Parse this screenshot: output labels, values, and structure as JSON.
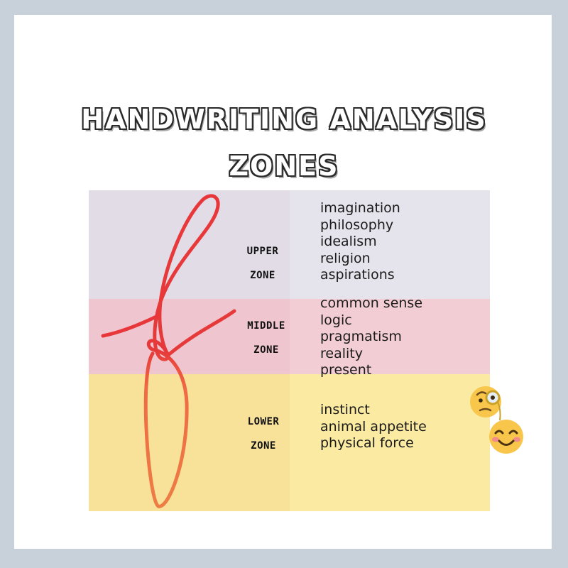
{
  "title": {
    "line1": "HANDWRITING ANALYSIS",
    "line2": "ZONES"
  },
  "zones": [
    {
      "id": "upper",
      "label_line1": "UPPER",
      "label_line2": "ZONE",
      "color": "#e5e4ec",
      "traits": [
        "imagination",
        "philosophy",
        "idealism",
        "religion",
        "aspirations"
      ]
    },
    {
      "id": "middle",
      "label_line1": "MIDDLE",
      "label_line2": "ZONE",
      "color": "#f2cdd3",
      "traits": [
        "common sense",
        "logic",
        "pragmatism",
        "reality",
        "present"
      ]
    },
    {
      "id": "lower",
      "label_line1": "LOWER",
      "label_line2": "ZONE",
      "color": "#fbeaa2",
      "traits": [
        "instinct",
        "animal appetite",
        "physical force"
      ]
    }
  ],
  "colors": {
    "ink": "#e8373a",
    "ink_lower": "#ee7d45",
    "background": "#c8d0da",
    "card": "#ffffff"
  },
  "icons": [
    "handwritten-f-letter",
    "monocle-face-emoji",
    "smiling-face-emoji"
  ]
}
